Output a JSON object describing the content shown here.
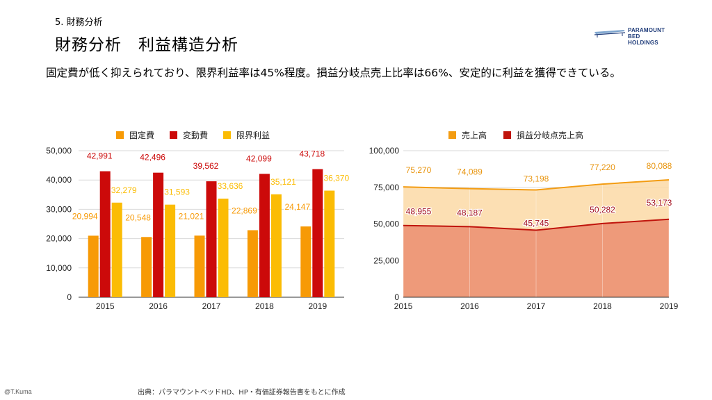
{
  "header": {
    "section": "5. 財務分析",
    "title": "財務分析　利益構造分析",
    "lead": "固定費が低く抑えられており、限界利益率は45%程度。損益分岐点売上比率は66%、安定的に利益を獲得できている。"
  },
  "logo": {
    "line1": "PARAMOUNT BED",
    "line2": "HOLDINGS"
  },
  "footer": {
    "credit": "@T.Kuma",
    "source": "出典：パラマウントベッドHD、HP・有価証券報告書をもとに作成"
  },
  "chart_data": [
    {
      "type": "bar",
      "categories": [
        "2015",
        "2016",
        "2017",
        "2018",
        "2019"
      ],
      "series": [
        {
          "name": "固定費",
          "color": "#f79a06",
          "values": [
            20994,
            20548,
            21021,
            22869,
            24147
          ],
          "labels": [
            "20,994",
            "20,548",
            "21,021",
            "22,869",
            "24,147"
          ]
        },
        {
          "name": "変動費",
          "color": "#cc0a0a",
          "values": [
            42991,
            42496,
            39562,
            42099,
            43718
          ],
          "labels": [
            "42,991",
            "42,496",
            "39,562",
            "42,099",
            "43,718"
          ]
        },
        {
          "name": "限界利益",
          "color": "#fbbc04",
          "values": [
            32279,
            31593,
            33636,
            35121,
            36370
          ],
          "labels": [
            "32,279",
            "31,593",
            "33,636",
            "35,121",
            "36,370"
          ]
        }
      ],
      "ylim": [
        0,
        50000
      ],
      "yticks": [
        "0",
        "10,000",
        "20,000",
        "30,000",
        "40,000",
        "50,000"
      ],
      "grid": true,
      "legend": "top"
    },
    {
      "type": "area",
      "categories": [
        "2015",
        "2016",
        "2017",
        "2018",
        "2019"
      ],
      "series": [
        {
          "name": "売上高",
          "color": "#f39c12",
          "values": [
            75270,
            74089,
            73198,
            77220,
            80088
          ],
          "labels": [
            "75,270",
            "74,089",
            "73,198",
            "77,220",
            "80,088"
          ]
        },
        {
          "name": "損益分岐点売上高",
          "color": "#c0140c",
          "values": [
            48955,
            48187,
            45745,
            50282,
            53173
          ],
          "labels": [
            "48,955",
            "48,187",
            "45,745",
            "50,282",
            "53,173"
          ]
        }
      ],
      "ylim": [
        0,
        100000
      ],
      "yticks": [
        "0",
        "25,000",
        "50,000",
        "75,000",
        "100,000"
      ],
      "grid": true,
      "legend": "top"
    }
  ]
}
